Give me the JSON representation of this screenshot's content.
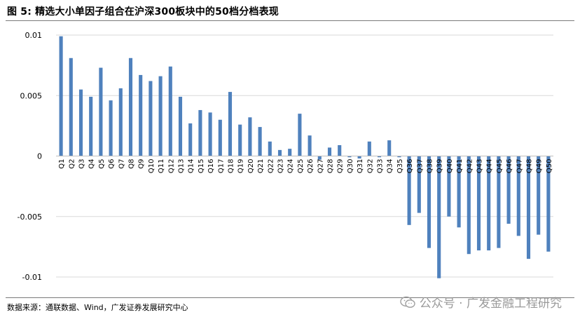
{
  "title": "图  5:  精选大小单因子组合在沪深300板块中的50档分档表现",
  "source": "数据来源：通联数据、Wind，广发证券发展研究中心",
  "watermark": "公众号 · 广发金融工程研究",
  "colors": {
    "bar": "#4f81bd",
    "grid": "#d9d9d9",
    "axis": "#bfbfbf"
  },
  "chart_data": {
    "type": "bar",
    "title": "精选大小单因子组合在沪深300板块中的50档分档表现",
    "xlabel": "",
    "ylabel": "",
    "ylim": [
      -0.01,
      0.01
    ],
    "yticks": [
      0.01,
      0.005,
      0,
      -0.005,
      -0.01
    ],
    "ytick_labels": [
      "0.01",
      "0.005",
      "0",
      "-0.005",
      "-0.01"
    ],
    "grid": true,
    "legend": "none",
    "categories": [
      "Q1",
      "Q2",
      "Q3",
      "Q4",
      "Q5",
      "Q6",
      "Q7",
      "Q8",
      "Q9",
      "Q10",
      "Q11",
      "Q12",
      "Q13",
      "Q14",
      "Q15",
      "Q16",
      "Q17",
      "Q18",
      "Q19",
      "Q20",
      "Q21",
      "Q22",
      "Q23",
      "Q24",
      "Q25",
      "Q26",
      "Q27",
      "Q28",
      "Q29",
      "Q30",
      "Q31",
      "Q32",
      "Q33",
      "Q34",
      "Q35",
      "Q36",
      "Q37",
      "Q38",
      "Q39",
      "Q40",
      "Q41",
      "Q42",
      "Q43",
      "Q44",
      "Q45",
      "Q46",
      "Q47",
      "Q48",
      "Q49",
      "Q50"
    ],
    "values": [
      0.0099,
      0.0081,
      0.0055,
      0.0049,
      0.0073,
      0.0046,
      0.0056,
      0.0081,
      0.0067,
      0.0062,
      0.0066,
      0.0074,
      0.0049,
      0.0027,
      0.0038,
      0.0036,
      0.003,
      0.0053,
      0.0026,
      0.0032,
      0.0024,
      0.0012,
      0.0005,
      0.0006,
      0.0035,
      0.0017,
      -0.0003,
      0.0007,
      0.0009,
      -0.0001,
      -0.0002,
      0.0012,
      -0.0001,
      0.0013,
      -0.0001,
      -0.0057,
      -0.0047,
      -0.0076,
      -0.0101,
      -0.005,
      -0.0059,
      -0.0081,
      -0.0078,
      -0.0078,
      -0.0076,
      -0.0056,
      -0.0066,
      -0.0085,
      -0.0065,
      -0.0079
    ]
  }
}
